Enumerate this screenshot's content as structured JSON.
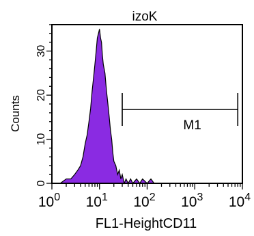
{
  "chart_data": {
    "type": "area",
    "title": "izoK",
    "xlabel": "FL1-HeightCD11",
    "ylabel": "Counts",
    "x_scale": "log",
    "xlim": [
      1,
      10000
    ],
    "ylim": [
      0,
      36
    ],
    "x_ticks": [
      {
        "base": "10",
        "exp": "0",
        "value": 1
      },
      {
        "base": "10",
        "exp": "1",
        "value": 10
      },
      {
        "base": "10",
        "exp": "2",
        "value": 100
      },
      {
        "base": "10",
        "exp": "3",
        "value": 1000
      },
      {
        "base": "10",
        "exp": "4",
        "value": 10000
      }
    ],
    "y_ticks": [
      "0",
      "10",
      "20",
      "30"
    ],
    "y_tick_values": [
      0,
      10,
      20,
      30
    ],
    "grid": false,
    "fill_color": "#8a2be2",
    "series": [
      {
        "x": [
          1.5,
          2,
          2.5,
          3,
          3.5,
          4,
          4.5,
          5,
          5.5,
          6,
          6.5,
          7,
          7.5,
          8,
          8.5,
          9,
          9.5,
          10,
          10.5,
          11,
          11.5,
          12,
          13,
          14,
          15,
          16,
          17,
          18,
          19,
          20,
          22,
          24,
          26,
          28,
          30,
          33,
          36,
          40,
          45,
          50,
          60,
          70,
          80,
          100,
          120,
          140,
          200,
          500,
          1000,
          10000
        ],
        "values": [
          0,
          1,
          1,
          2,
          3,
          4,
          6,
          9,
          11,
          14,
          17,
          21,
          24,
          27,
          30,
          33,
          34,
          35,
          33,
          32,
          29,
          27,
          25,
          21,
          18,
          15,
          12,
          10,
          7,
          5,
          4,
          2,
          3,
          1,
          2,
          0,
          1,
          0,
          1,
          0,
          1,
          0,
          1,
          0,
          1,
          0,
          0,
          0,
          0,
          0
        ]
      }
    ],
    "marker": {
      "label": "M1",
      "x_start": 30,
      "x_end": 8000
    }
  }
}
